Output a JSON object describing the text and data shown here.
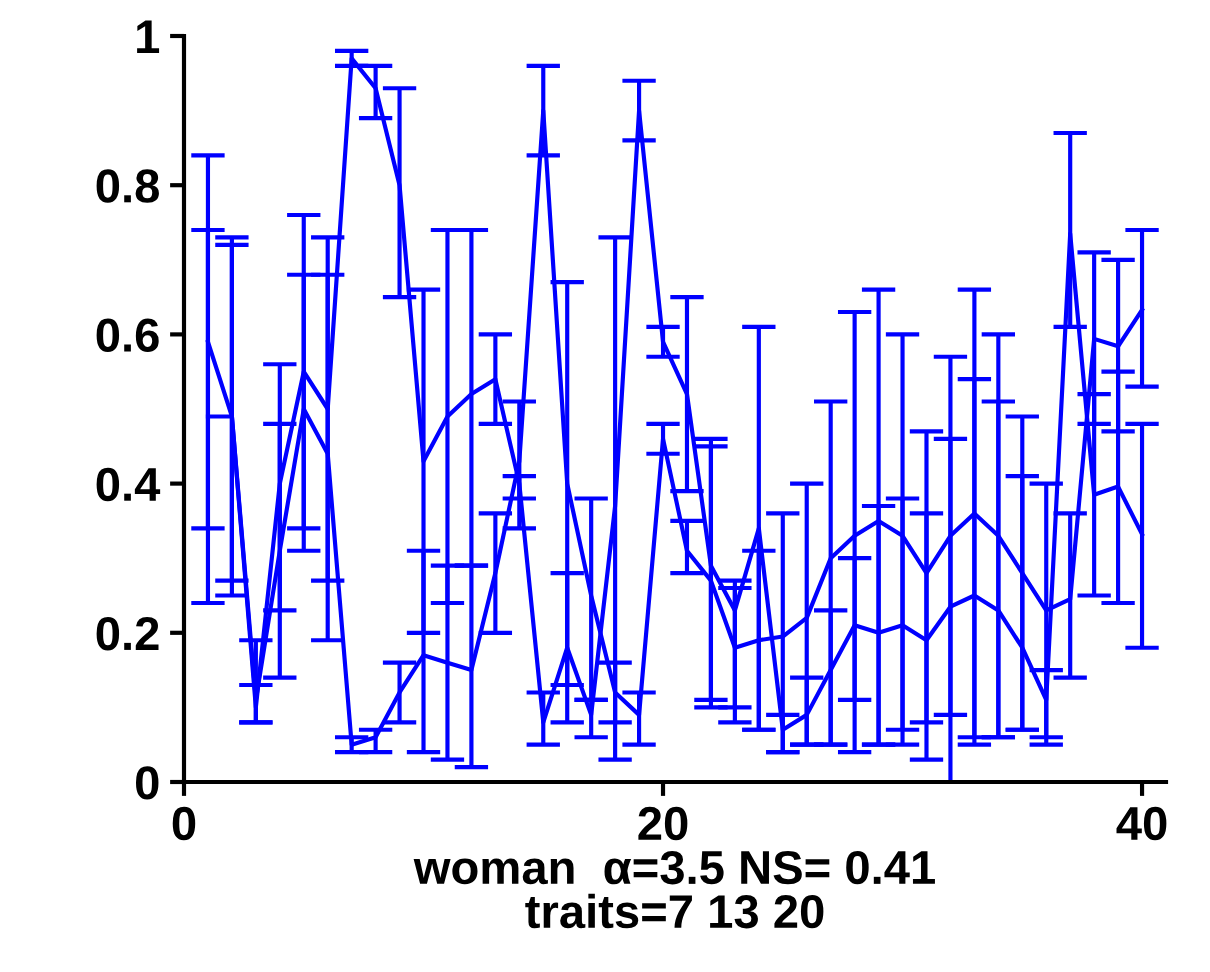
{
  "chart_data": {
    "type": "line",
    "xlabel": "woman  α=3.5 NS= 0.41\ntraits=7 13 20",
    "x": [
      1,
      2,
      3,
      4,
      5,
      6,
      7,
      8,
      9,
      10,
      11,
      12,
      13,
      14,
      15,
      16,
      17,
      18,
      19,
      20,
      21,
      22,
      23,
      24,
      25,
      26,
      27,
      28,
      29,
      30,
      31,
      32,
      33,
      34,
      35,
      36,
      37,
      38,
      39,
      40
    ],
    "series": [
      {
        "color": "#0000ff",
        "values": [
          0.59,
          0.49,
          0.1,
          0.4,
          0.55,
          0.5,
          0.97,
          0.93,
          0.8,
          0.43,
          0.49,
          0.52,
          0.54,
          0.4,
          0.08,
          0.18,
          0.09,
          0.37,
          0.9,
          0.59,
          0.52,
          0.29,
          0.23,
          0.34,
          0.07,
          0.09,
          0.15,
          0.21,
          0.2,
          0.21,
          0.19,
          0.235,
          0.25,
          0.23,
          0.18,
          0.11,
          0.735,
          0.385,
          0.396,
          0.332
        ],
        "errors": [
          [
            0.34,
            0.84
          ],
          [
            0.25,
            0.73
          ],
          [
            0.08,
            0.19
          ],
          [
            0.23,
            0.56
          ],
          [
            0.34,
            0.76
          ],
          [
            0.27,
            0.73
          ],
          [
            0.96,
            0.98
          ],
          [
            0.89,
            0.96
          ],
          [
            0.65,
            0.93
          ],
          [
            0.2,
            0.66
          ],
          [
            0.24,
            0.74
          ],
          [
            0.29,
            0.74
          ],
          [
            0.48,
            0.6
          ],
          [
            0.38,
            0.41
          ],
          [
            0.05,
            0.12
          ],
          [
            0.13,
            0.28
          ],
          [
            0.06,
            0.11
          ],
          [
            0.03,
            0.73
          ],
          [
            0.86,
            0.94
          ],
          [
            0.57,
            0.61
          ],
          [
            0.39,
            0.65
          ],
          [
            0.11,
            0.46
          ],
          [
            0.08,
            0.27
          ],
          [
            0.07,
            0.61
          ],
          [
            0.04,
            0.09
          ],
          [
            0.05,
            0.14
          ],
          [
            0.05,
            0.23
          ],
          [
            0.11,
            0.3
          ],
          [
            0.05,
            0.37
          ],
          [
            0.07,
            0.38
          ],
          [
            0.08,
            0.36
          ],
          [
            0.0,
            0.46
          ],
          [
            0.05,
            0.54
          ],
          [
            0.06,
            0.51
          ],
          [
            0.07,
            0.41
          ],
          [
            0.06,
            0.15
          ],
          [
            0.61,
            0.87
          ],
          [
            0.25,
            0.52
          ],
          [
            0.24,
            0.55
          ],
          [
            0.18,
            0.48
          ]
        ]
      },
      {
        "color": "#0000ff",
        "values": [
          0.49,
          0.49,
          0.11,
          0.31,
          0.5,
          0.44,
          0.05,
          0.06,
          0.12,
          0.17,
          0.16,
          0.15,
          0.28,
          0.43,
          0.9,
          0.4,
          0.25,
          0.12,
          0.09,
          0.46,
          0.31,
          0.27,
          0.18,
          0.19,
          0.195,
          0.22,
          0.3,
          0.33,
          0.35,
          0.33,
          0.28,
          0.33,
          0.36,
          0.33,
          0.28,
          0.23,
          0.245,
          0.594,
          0.584,
          0.633
        ],
        "errors": [
          [
            0.24,
            0.74
          ],
          [
            0.27,
            0.72
          ],
          [
            0.08,
            0.13
          ],
          [
            0.14,
            0.48
          ],
          [
            0.31,
            0.68
          ],
          [
            0.19,
            0.68
          ],
          [
            0.04,
            0.06
          ],
          [
            0.04,
            0.07
          ],
          [
            0.08,
            0.16
          ],
          [
            0.04,
            0.31
          ],
          [
            0.03,
            0.29
          ],
          [
            0.02,
            0.29
          ],
          [
            0.2,
            0.36
          ],
          [
            0.34,
            0.51
          ],
          [
            0.84,
            0.96
          ],
          [
            0.08,
            0.67
          ],
          [
            0.11,
            0.38
          ],
          [
            0.08,
            0.16
          ],
          [
            0.05,
            0.12
          ],
          [
            0.44,
            0.48
          ],
          [
            0.28,
            0.35
          ],
          [
            0.1,
            0.45
          ],
          [
            0.1,
            0.26
          ],
          [
            0.07,
            0.31
          ],
          [
            0.04,
            0.36
          ],
          [
            0.05,
            0.4
          ],
          [
            0.05,
            0.51
          ],
          [
            0.04,
            0.63
          ],
          [
            0.05,
            0.66
          ],
          [
            0.05,
            0.6
          ],
          [
            0.03,
            0.47
          ],
          [
            0.09,
            0.57
          ],
          [
            0.06,
            0.66
          ],
          [
            0.06,
            0.6
          ],
          [
            0.07,
            0.49
          ],
          [
            0.05,
            0.4
          ],
          [
            0.14,
            0.36
          ],
          [
            0.48,
            0.71
          ],
          [
            0.47,
            0.7
          ],
          [
            0.53,
            0.74
          ]
        ]
      }
    ],
    "xlim": [
      0,
      41
    ],
    "xticks": [
      0,
      20,
      40
    ],
    "ylim": [
      0,
      1
    ],
    "yticks": [
      0,
      0.2,
      0.4,
      0.6,
      0.8,
      1
    ],
    "grid": false,
    "legend": false,
    "marker": "none",
    "line_style": "solid"
  }
}
